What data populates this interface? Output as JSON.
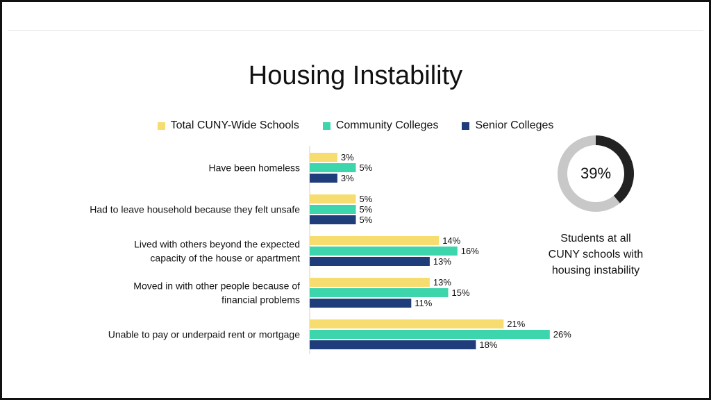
{
  "title": "Housing Instability",
  "colors": {
    "total": "#f7dc6f",
    "community": "#3dd6ac",
    "senior": "#1f3d7a",
    "donut_fill": "#222222",
    "donut_rest": "#c8c8c8"
  },
  "donut": {
    "percent": 39,
    "label": "39%",
    "caption": [
      "Students at all",
      "CUNY schools with",
      "housing instability"
    ]
  },
  "chart_data": {
    "type": "bar",
    "orientation": "horizontal",
    "title": "Housing Instability",
    "categories": [
      [
        "Have been homeless"
      ],
      [
        "Had to leave household because they felt unsafe"
      ],
      [
        "Lived with others beyond the expected",
        "capacity of the house or apartment"
      ],
      [
        "Moved in with other people because of",
        "financial problems"
      ],
      [
        "Unable to pay or underpaid rent or mortgage"
      ]
    ],
    "series": [
      {
        "name": "Total CUNY-Wide Schools",
        "color": "#f7dc6f",
        "values": [
          3,
          5,
          14,
          13,
          21
        ],
        "labels": [
          "3%",
          "5%",
          "14%",
          "13%",
          "21%"
        ]
      },
      {
        "name": "Community Colleges",
        "color": "#3dd6ac",
        "values": [
          5,
          5,
          16,
          15,
          26
        ],
        "labels": [
          "5%",
          "5%",
          "16%",
          "15%",
          "26%"
        ]
      },
      {
        "name": "Senior Colleges",
        "color": "#1f3d7a",
        "values": [
          3,
          5,
          13,
          11,
          18
        ],
        "labels": [
          "3%",
          "5%",
          "13%",
          "11%",
          "18%"
        ]
      }
    ],
    "xlim": [
      0,
      26
    ],
    "legend_position": "top-center",
    "value_format": "percent"
  }
}
